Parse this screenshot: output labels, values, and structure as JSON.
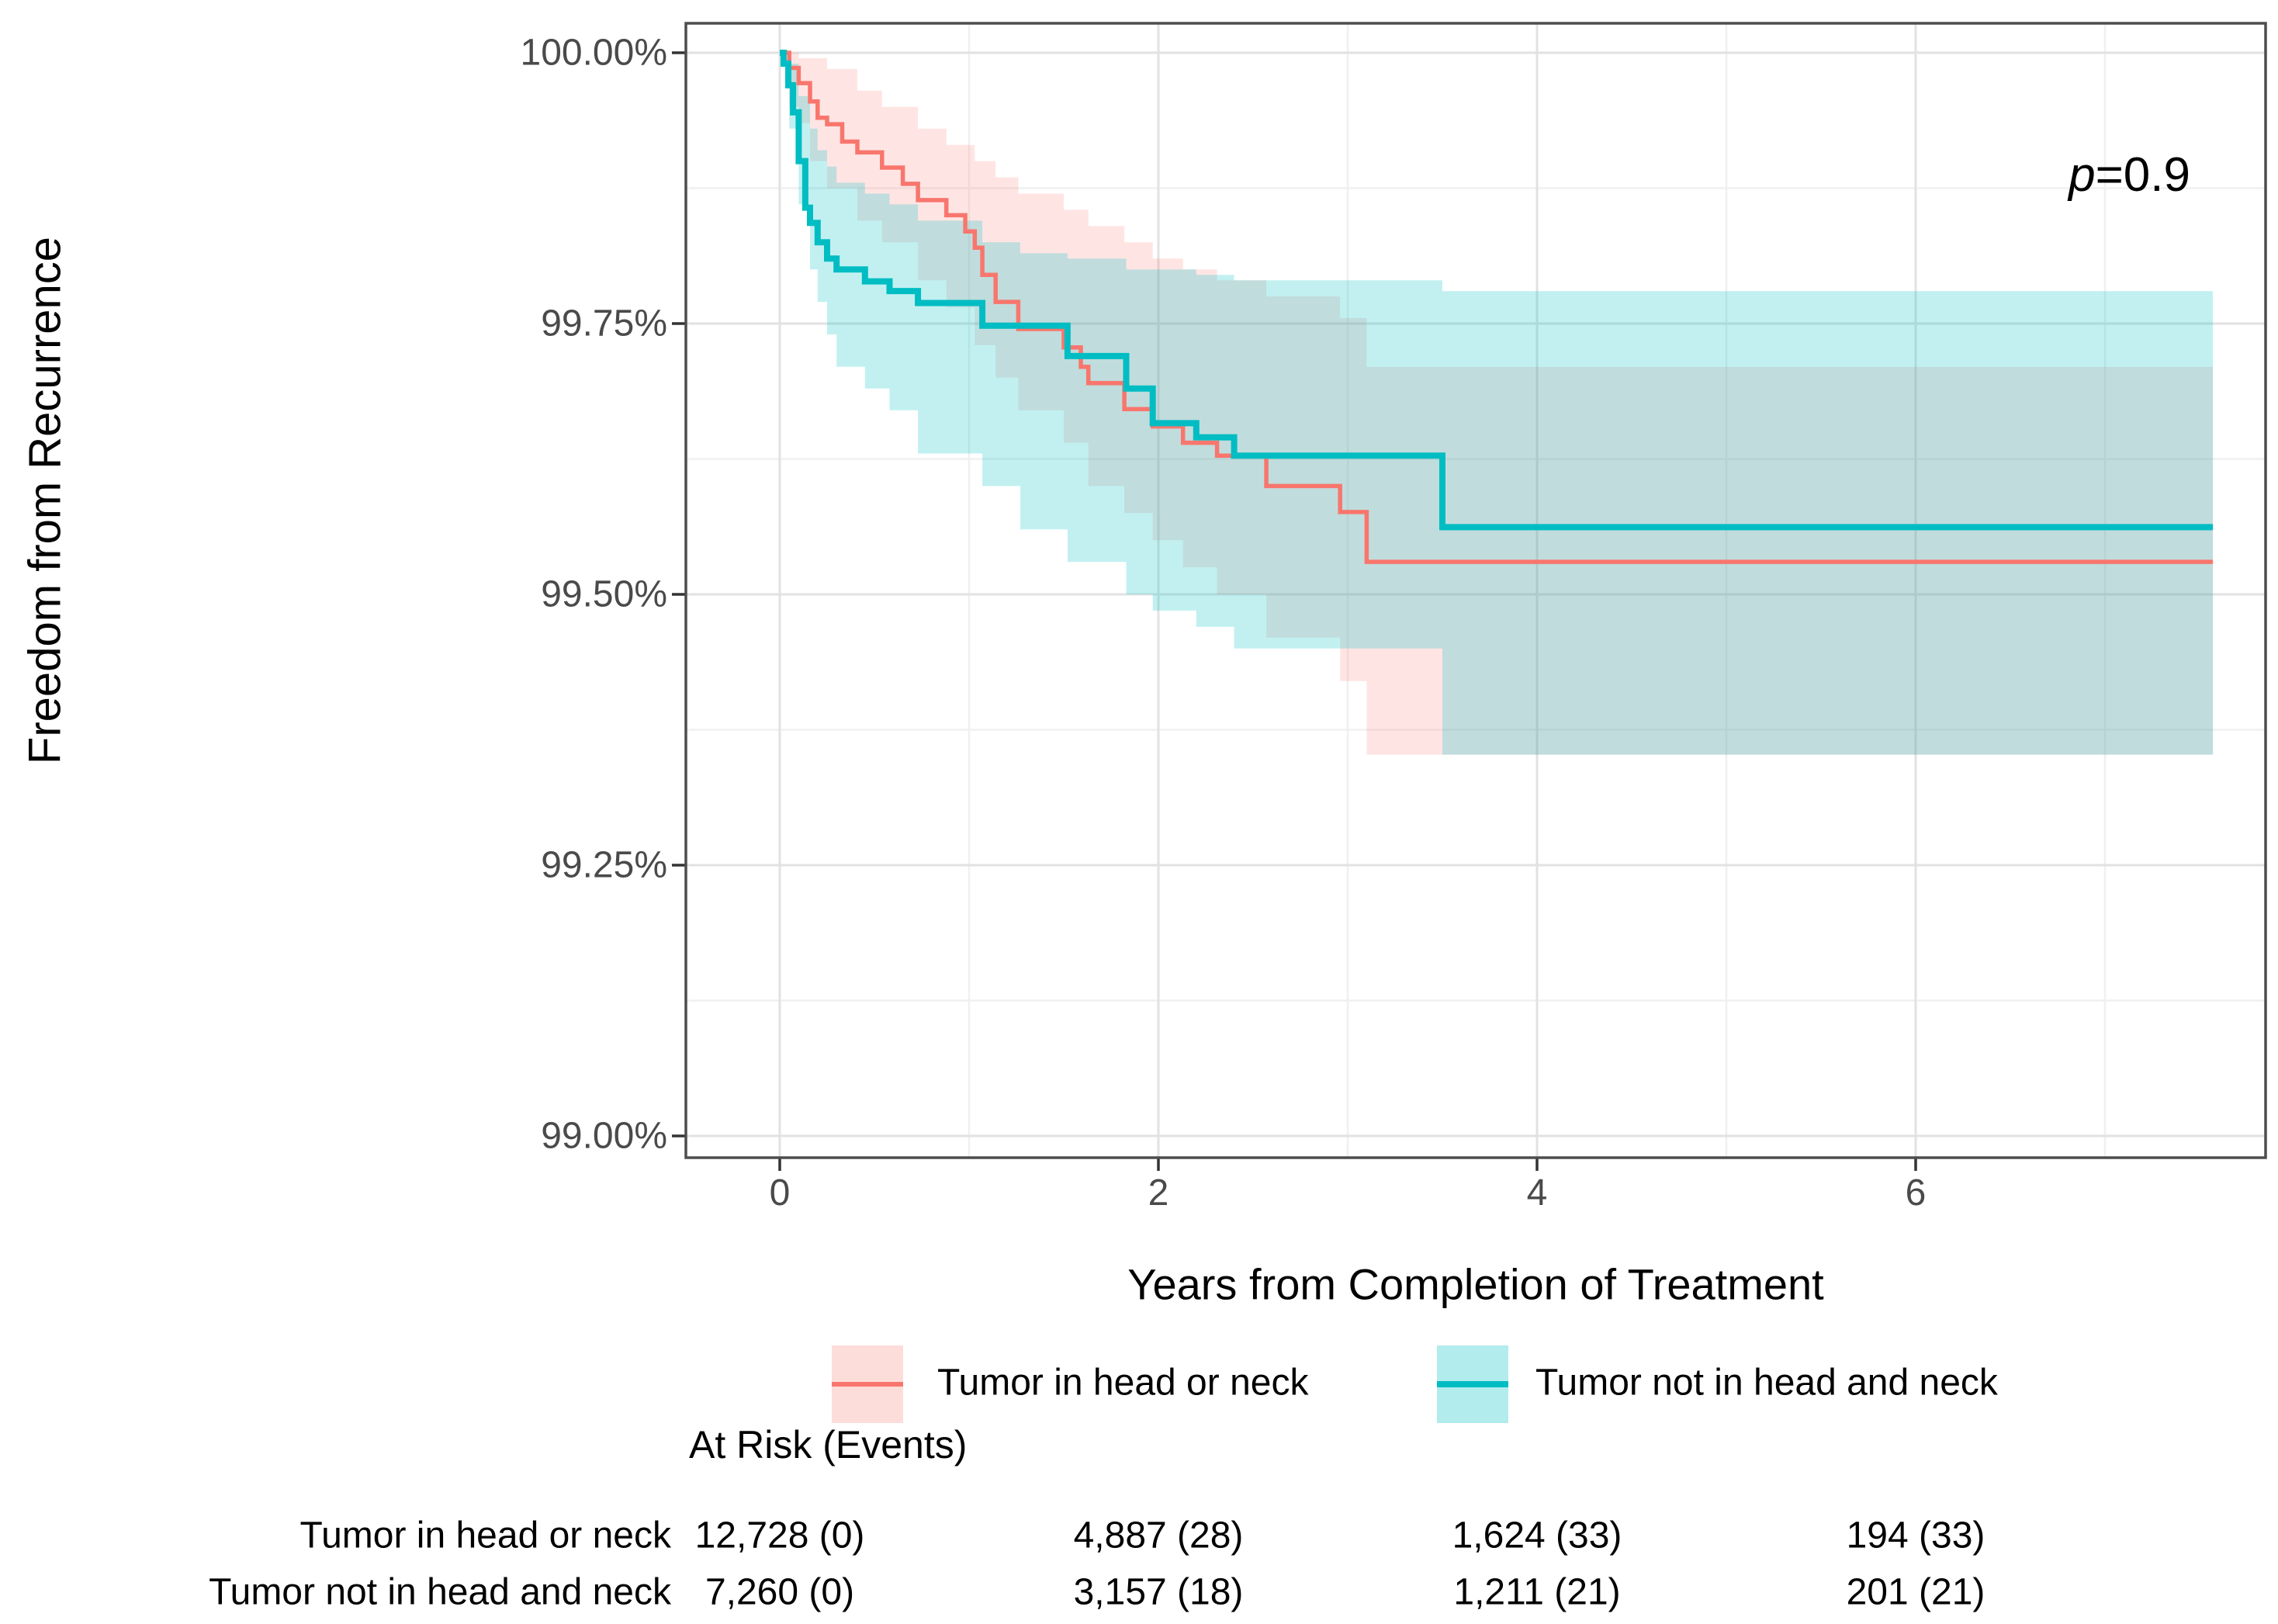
{
  "figure": {
    "y_axis_title": "Freedom from Recurrence",
    "x_axis_title": "Years from Completion of Treatment",
    "p_annotation": {
      "symbol": "p",
      "rest": "=0.9"
    }
  },
  "chart_data": {
    "type": "line",
    "subtype": "kaplan-meier-step-with-ci-ribbons",
    "title": "",
    "xlabel": "Years from Completion of Treatment",
    "ylabel": "Freedom from Recurrence",
    "annotation": "p=0.9",
    "x_tick_labels": [
      "0",
      "2",
      "4",
      "6"
    ],
    "x_tick_values": [
      0,
      2,
      4,
      6
    ],
    "y_tick_labels": [
      "100.00%",
      "99.75%",
      "99.50%",
      "99.25%",
      "99.00%"
    ],
    "y_tick_values": [
      100,
      99.75,
      99.5,
      99.25,
      99
    ],
    "xlim": [
      -0.5,
      7.85
    ],
    "ylim": [
      98.977,
      100.027
    ],
    "grid": true,
    "legend_position": "bottom",
    "curve_end_x": 7.57,
    "series": [
      {
        "name": "Tumor in head or neck",
        "color": "#F8766D",
        "ribbon_color": "rgba(248,118,109,0.19)",
        "steps": [
          [
            0,
            100
          ],
          [
            0.05,
            99.986
          ],
          [
            0.1,
            99.972
          ],
          [
            0.16,
            99.955
          ],
          [
            0.2,
            99.94
          ],
          [
            0.25,
            99.934
          ],
          [
            0.33,
            99.918
          ],
          [
            0.41,
            99.908
          ],
          [
            0.54,
            99.894
          ],
          [
            0.65,
            99.879
          ],
          [
            0.73,
            99.864
          ],
          [
            0.88,
            99.85
          ],
          [
            0.98,
            99.835
          ],
          [
            1.03,
            99.82
          ],
          [
            1.07,
            99.795
          ],
          [
            1.14,
            99.77
          ],
          [
            1.26,
            99.745
          ],
          [
            1.5,
            99.728
          ],
          [
            1.59,
            99.71
          ],
          [
            1.63,
            99.695
          ],
          [
            1.82,
            99.671
          ],
          [
            1.97,
            99.655
          ],
          [
            2.13,
            99.64
          ],
          [
            2.31,
            99.628
          ],
          [
            2.57,
            99.6
          ],
          [
            2.96,
            99.576
          ],
          [
            3.1,
            99.53
          ]
        ],
        "ci_upper": [
          [
            0,
            100
          ],
          [
            0.1,
            99.995
          ],
          [
            0.25,
            99.985
          ],
          [
            0.41,
            99.965
          ],
          [
            0.54,
            99.95
          ],
          [
            0.73,
            99.93
          ],
          [
            0.88,
            99.915
          ],
          [
            1.03,
            99.9
          ],
          [
            1.14,
            99.885
          ],
          [
            1.26,
            99.87
          ],
          [
            1.5,
            99.855
          ],
          [
            1.63,
            99.84
          ],
          [
            1.82,
            99.825
          ],
          [
            1.97,
            99.81
          ],
          [
            2.13,
            99.8
          ],
          [
            2.31,
            99.79
          ],
          [
            2.57,
            99.775
          ],
          [
            2.96,
            99.755
          ],
          [
            3.1,
            99.71
          ]
        ],
        "ci_lower": [
          [
            0,
            100
          ],
          [
            0.05,
            99.95
          ],
          [
            0.1,
            99.935
          ],
          [
            0.16,
            99.9
          ],
          [
            0.25,
            99.875
          ],
          [
            0.41,
            99.845
          ],
          [
            0.54,
            99.825
          ],
          [
            0.73,
            99.79
          ],
          [
            0.88,
            99.765
          ],
          [
            1.03,
            99.73
          ],
          [
            1.14,
            99.7
          ],
          [
            1.26,
            99.67
          ],
          [
            1.5,
            99.64
          ],
          [
            1.63,
            99.6
          ],
          [
            1.82,
            99.575
          ],
          [
            1.97,
            99.55
          ],
          [
            2.13,
            99.525
          ],
          [
            2.31,
            99.5
          ],
          [
            2.57,
            99.46
          ],
          [
            2.96,
            99.42
          ],
          [
            3.1,
            99.352
          ]
        ]
      },
      {
        "name": "Tumor not in head and neck",
        "color": "#00BDC3",
        "ribbon_color": "rgba(0,191,196,0.24)",
        "steps": [
          [
            0,
            100
          ],
          [
            0.02,
            99.99
          ],
          [
            0.045,
            99.97
          ],
          [
            0.07,
            99.945
          ],
          [
            0.1,
            99.9
          ],
          [
            0.135,
            99.857
          ],
          [
            0.16,
            99.843
          ],
          [
            0.2,
            99.825
          ],
          [
            0.25,
            99.81
          ],
          [
            0.3,
            99.8
          ],
          [
            0.45,
            99.789
          ],
          [
            0.58,
            99.78
          ],
          [
            0.73,
            99.769
          ],
          [
            1.07,
            99.748
          ],
          [
            1.52,
            99.72
          ],
          [
            1.83,
            99.69
          ],
          [
            1.97,
            99.658
          ],
          [
            2.2,
            99.645
          ],
          [
            2.4,
            99.628
          ],
          [
            3.5,
            99.562
          ]
        ],
        "ci_upper": [
          [
            0,
            100
          ],
          [
            0.045,
            99.99
          ],
          [
            0.1,
            99.96
          ],
          [
            0.16,
            99.93
          ],
          [
            0.2,
            99.91
          ],
          [
            0.25,
            99.895
          ],
          [
            0.3,
            99.88
          ],
          [
            0.45,
            99.87
          ],
          [
            0.58,
            99.86
          ],
          [
            0.73,
            99.845
          ],
          [
            1.07,
            99.825
          ],
          [
            1.27,
            99.815
          ],
          [
            1.52,
            99.81
          ],
          [
            1.83,
            99.8
          ],
          [
            2.2,
            99.795
          ],
          [
            2.4,
            99.79
          ],
          [
            3.5,
            99.78
          ]
        ],
        "ci_lower": [
          [
            0,
            100
          ],
          [
            0.05,
            99.93
          ],
          [
            0.1,
            99.86
          ],
          [
            0.16,
            99.8
          ],
          [
            0.2,
            99.77
          ],
          [
            0.25,
            99.74
          ],
          [
            0.3,
            99.71
          ],
          [
            0.45,
            99.69
          ],
          [
            0.58,
            99.67
          ],
          [
            0.73,
            99.63
          ],
          [
            1.07,
            99.6
          ],
          [
            1.27,
            99.56
          ],
          [
            1.52,
            99.53
          ],
          [
            1.83,
            99.5
          ],
          [
            1.97,
            99.485
          ],
          [
            2.2,
            99.47
          ],
          [
            2.4,
            99.45
          ],
          [
            3.5,
            99.352
          ]
        ]
      }
    ]
  },
  "legend": {
    "items": [
      {
        "label": "Tumor in head or neck",
        "line_color": "#F8766D",
        "fill_color": "rgba(248,118,109,0.25)"
      },
      {
        "label": "Tumor not in head and neck",
        "line_color": "#00BDC3",
        "fill_color": "rgba(0,191,196,0.30)"
      }
    ]
  },
  "risk_table": {
    "header": "At Risk (Events)",
    "rows": [
      {
        "label": "Tumor in head or neck",
        "values": [
          "12,728 (0)",
          "4,887 (28)",
          "1,624 (33)",
          "194 (33)"
        ]
      },
      {
        "label": "Tumor not in head and neck",
        "values": [
          "7,260 (0)",
          "3,157 (18)",
          "1,211 (21)",
          "201 (21)"
        ]
      }
    ]
  },
  "colors": {
    "series_red": "#F8766D",
    "series_teal": "#00BDC3",
    "panel_border": "#4d4d4d",
    "grid_major": "#e2e2e2",
    "grid_minor": "#f0f0f0",
    "tick_text": "#4a4a4a"
  }
}
